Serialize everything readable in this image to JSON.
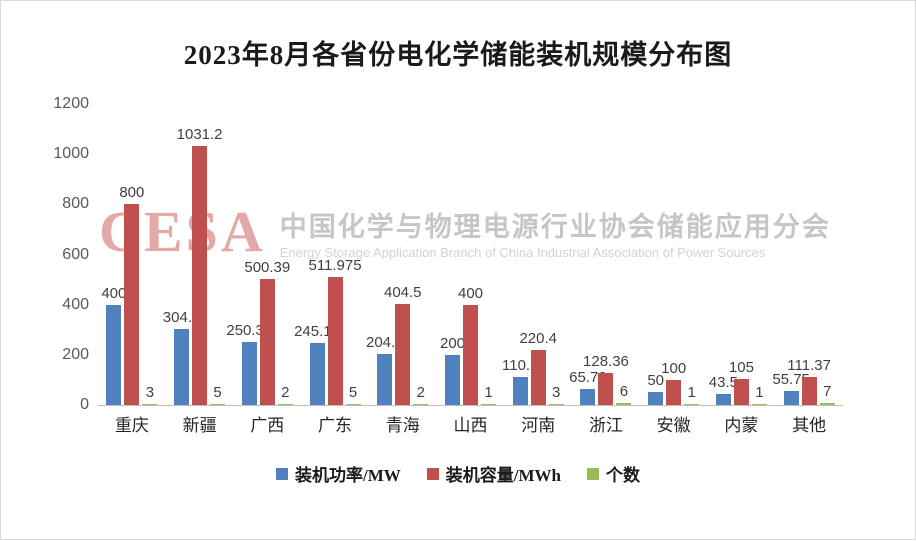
{
  "watermark": {
    "acronym": "CESA",
    "cn": "中国化学与物理电源行业协会储能应用分会",
    "en": "Energy Storage Application Branch of China Industrial Association of Power Sources"
  },
  "chart_data": {
    "type": "bar",
    "title": "2023年8月各省份电化学储能装机规模分布图",
    "categories": [
      "重庆",
      "新疆",
      "广西",
      "广东",
      "青海",
      "山西",
      "河南",
      "浙江",
      "安徽",
      "内蒙",
      "其他"
    ],
    "series": [
      {
        "key": "power",
        "name": "装机功率/MW",
        "color": "#4F81BD",
        "values": [
          400,
          304.5,
          250.39,
          245.19,
          204.5,
          200,
          110.2,
          65.72,
          50,
          43.5,
          55.75
        ]
      },
      {
        "key": "capacity",
        "name": "装机容量/MWh",
        "color": "#C0504D",
        "values": [
          800,
          1031.2,
          500.39,
          511.975,
          404.5,
          400,
          220.4,
          128.36,
          100,
          105,
          111.37
        ]
      },
      {
        "key": "count",
        "name": "个数",
        "color": "#9BBB59",
        "values": [
          3,
          5,
          2,
          5,
          2,
          1,
          3,
          6,
          1,
          1,
          7
        ]
      }
    ],
    "xlabel": "",
    "ylabel": "",
    "ylim": [
      0,
      1200
    ],
    "yticks": [
      0,
      200,
      400,
      600,
      800,
      1000,
      1200
    ],
    "grid": false,
    "data_labels": true,
    "legend_position": "bottom"
  }
}
